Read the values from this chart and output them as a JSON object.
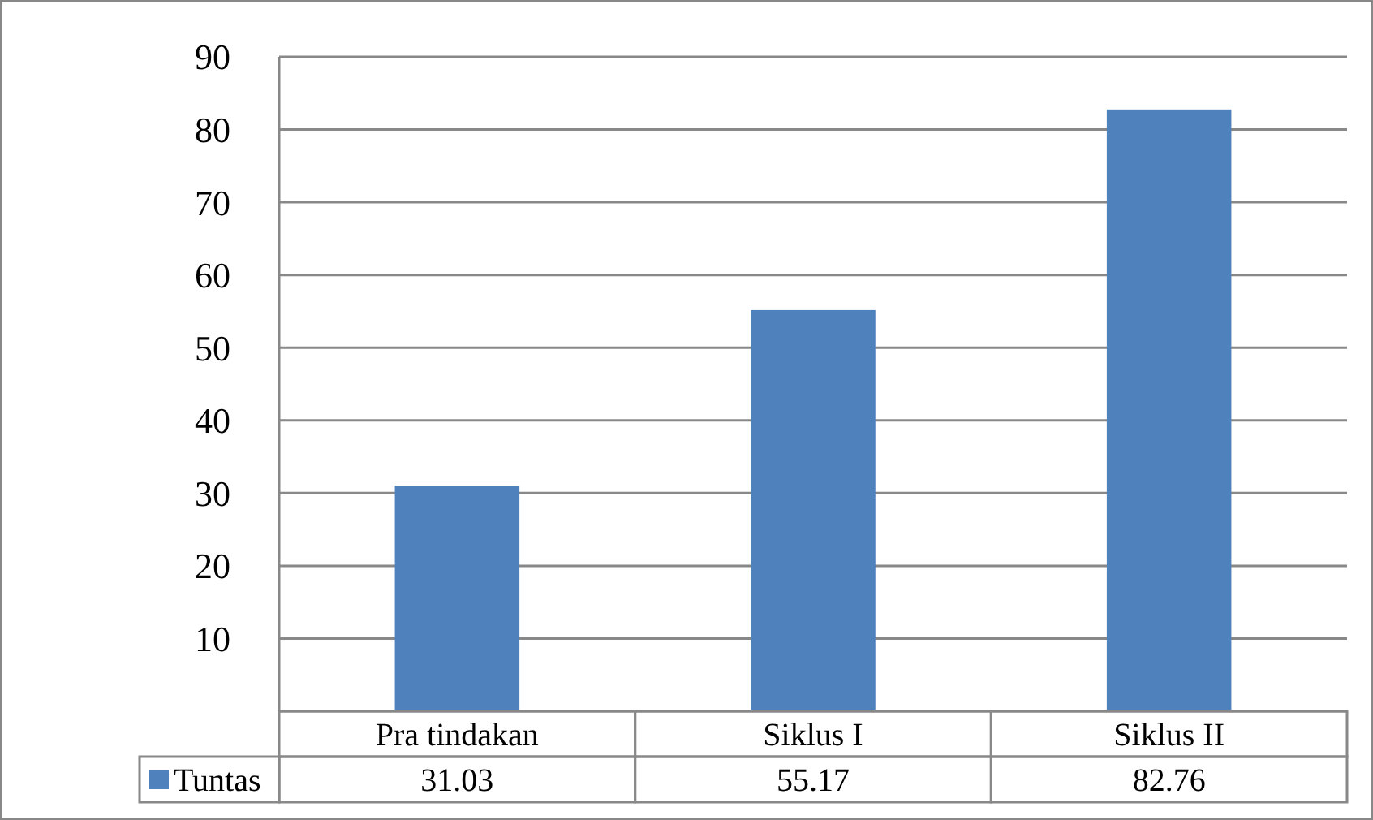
{
  "chart_data": {
    "type": "bar",
    "categories": [
      "Pra tindakan",
      "Siklus I",
      "Siklus II"
    ],
    "series": [
      {
        "name": "Tuntas",
        "color": "#4f81bd",
        "values": [
          31.03,
          55.17,
          82.76
        ]
      }
    ],
    "ylim": [
      0,
      90
    ],
    "yticks": [
      {
        "value": 0,
        "label": null
      },
      10,
      20,
      30,
      40,
      50,
      60,
      70,
      80,
      90
    ],
    "grid": "y",
    "data_labels": true,
    "legend": "bottom left"
  }
}
